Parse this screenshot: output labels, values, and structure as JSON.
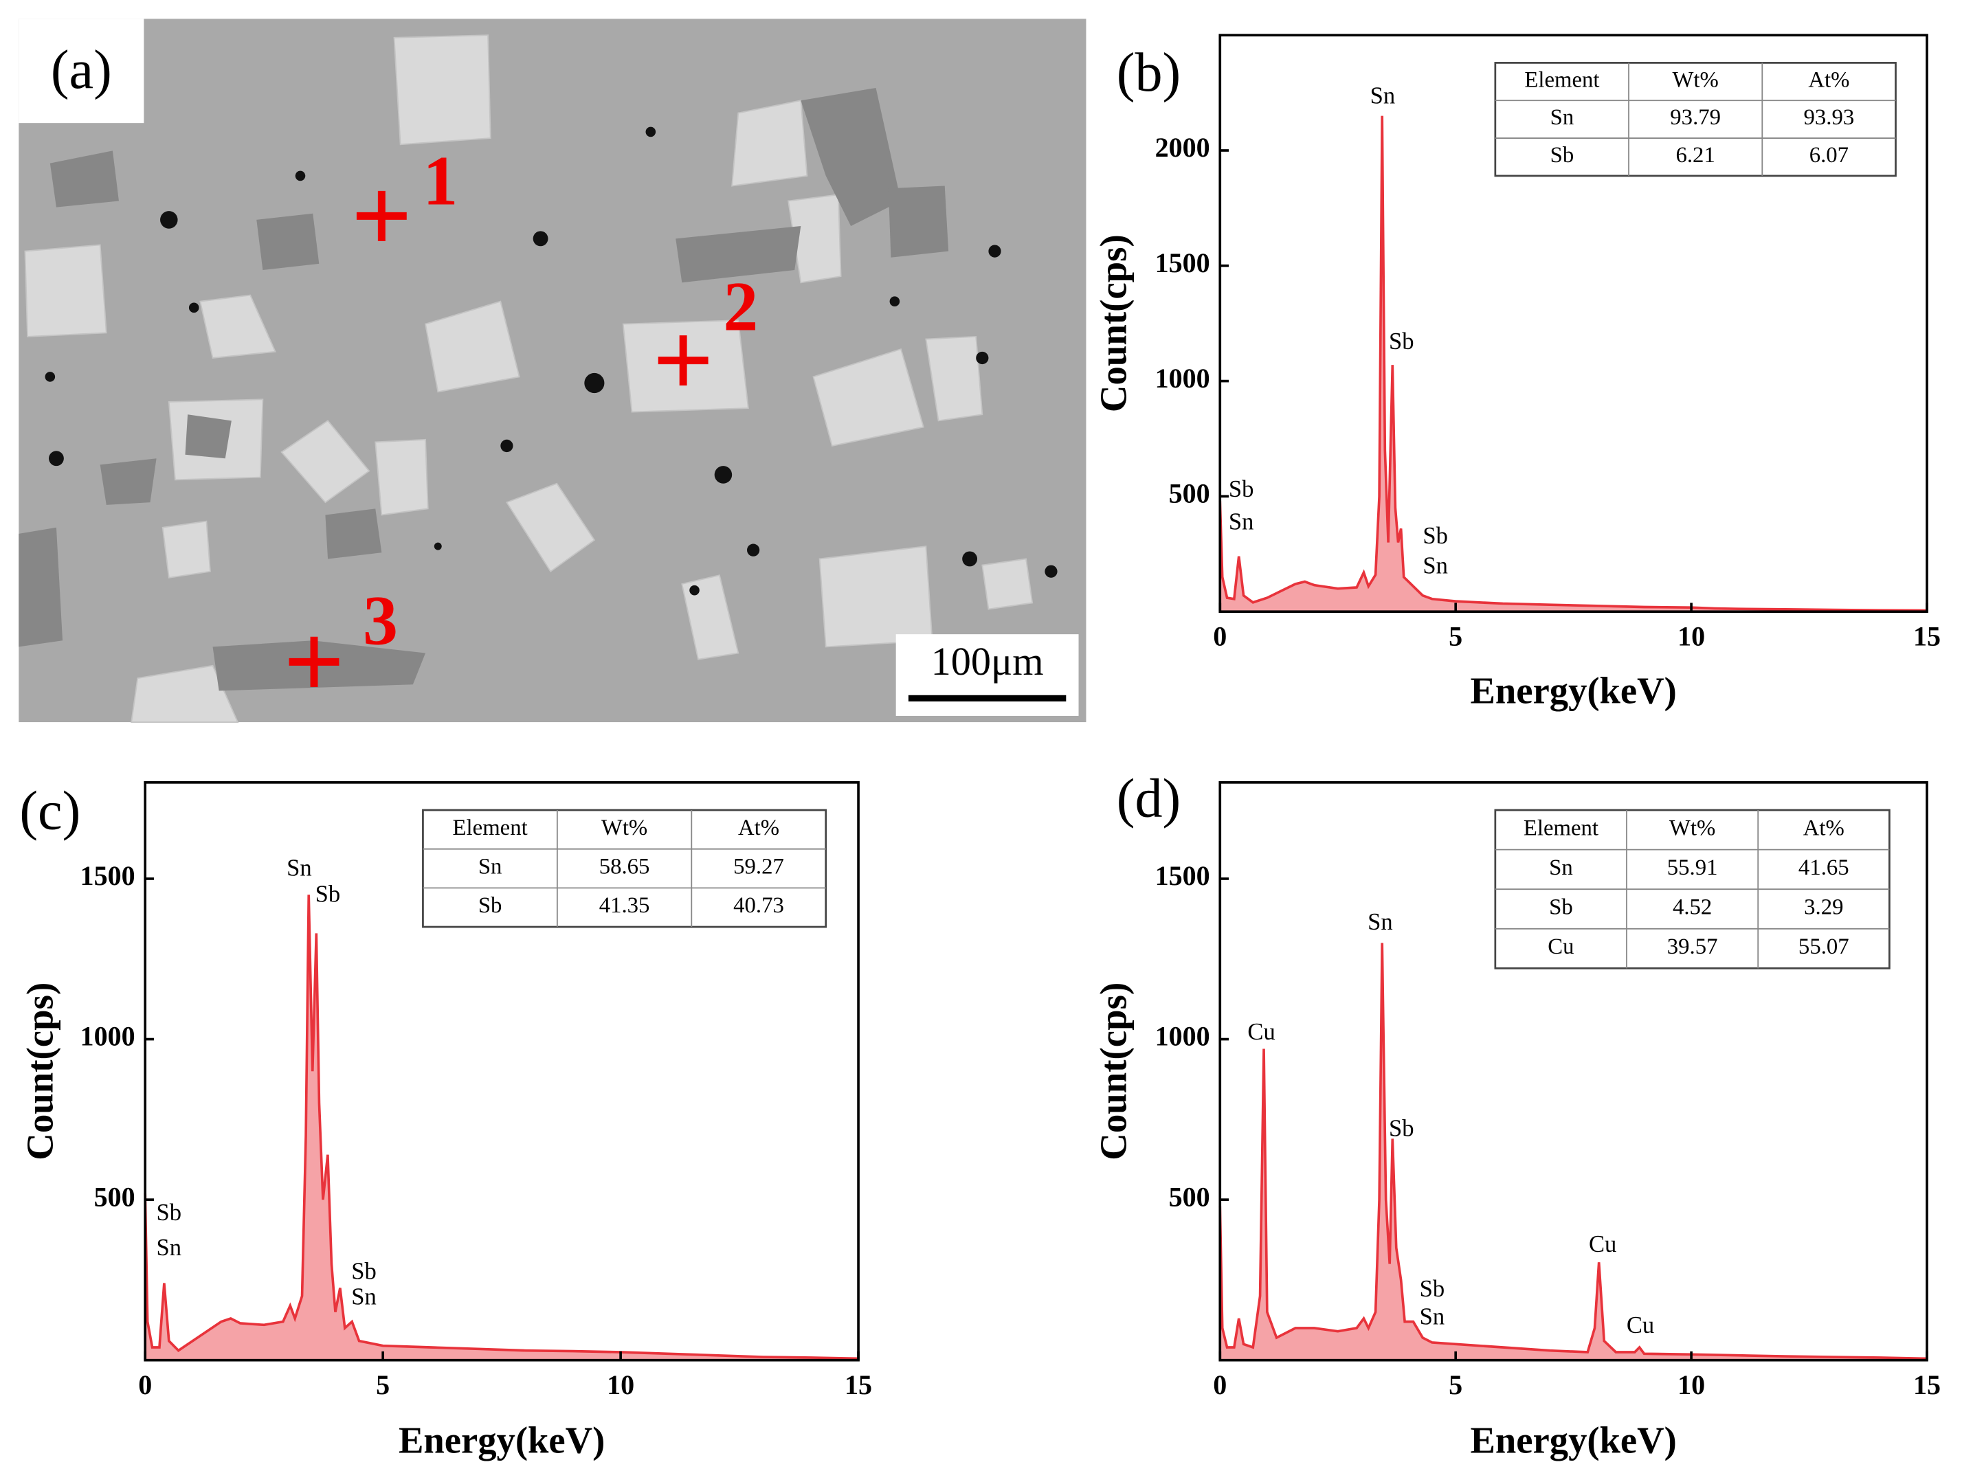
{
  "micrograph": {
    "label": "(a)",
    "points": [
      "1",
      "2",
      "3"
    ],
    "scale_bar": "100μm"
  },
  "chart_data": [
    {
      "type": "area",
      "panel": "(b)",
      "xlabel": "Energy(keV)",
      "ylabel": "Count(cps)",
      "color": "#e8333b",
      "xlim": [
        0,
        15
      ],
      "ylim": [
        0,
        2500
      ],
      "xticks": [
        0,
        5,
        10,
        15
      ],
      "yticks": [
        500,
        1000,
        1500,
        2000
      ],
      "x": [
        0,
        0.05,
        0.15,
        0.3,
        0.4,
        0.5,
        0.7,
        1.0,
        1.3,
        1.6,
        1.8,
        2.0,
        2.5,
        2.9,
        3.05,
        3.15,
        3.3,
        3.38,
        3.44,
        3.5,
        3.57,
        3.66,
        3.72,
        3.78,
        3.84,
        3.9,
        4.0,
        4.1,
        4.3,
        4.5,
        5,
        6,
        7,
        8,
        9,
        10,
        10.5,
        11,
        12,
        13,
        14,
        15
      ],
      "values": [
        480,
        150,
        60,
        55,
        240,
        70,
        40,
        60,
        90,
        120,
        130,
        115,
        100,
        105,
        170,
        110,
        160,
        500,
        2150,
        700,
        300,
        1070,
        450,
        300,
        360,
        150,
        130,
        110,
        70,
        55,
        45,
        35,
        30,
        25,
        20,
        18,
        14,
        12,
        10,
        8,
        6,
        5
      ],
      "annotations": [
        {
          "text": "Sn",
          "x": 3.45,
          "y": 2228
        },
        {
          "text": "Sb",
          "x": 3.85,
          "y": 1163
        },
        {
          "text": "Sb",
          "x": 0.45,
          "y": 522
        },
        {
          "text": "Sn",
          "x": 0.45,
          "y": 380
        },
        {
          "text": "Sb",
          "x": 4.57,
          "y": 320
        },
        {
          "text": "Sn",
          "x": 4.57,
          "y": 190
        }
      ],
      "table": {
        "columns": [
          "Element",
          "Wt%",
          "At%"
        ],
        "rows": [
          [
            "Sn",
            93.79,
            93.93
          ],
          [
            "Sb",
            6.21,
            6.07
          ]
        ]
      }
    },
    {
      "type": "area",
      "panel": "(c)",
      "xlabel": "Energy(keV)",
      "ylabel": "Count(cps)",
      "color": "#e8333b",
      "xlim": [
        0,
        15
      ],
      "ylim": [
        0,
        1800
      ],
      "xticks": [
        0,
        5,
        10,
        15
      ],
      "yticks": [
        500,
        1000,
        1500
      ],
      "x": [
        0,
        0.05,
        0.15,
        0.3,
        0.4,
        0.5,
        0.7,
        1.0,
        1.3,
        1.6,
        1.8,
        2.0,
        2.5,
        2.9,
        3.05,
        3.15,
        3.3,
        3.38,
        3.44,
        3.52,
        3.6,
        3.66,
        3.74,
        3.84,
        3.92,
        4.0,
        4.1,
        4.2,
        4.35,
        4.5,
        5,
        6,
        7,
        8,
        9,
        10,
        11,
        12,
        13,
        14,
        15
      ],
      "values": [
        520,
        120,
        40,
        40,
        240,
        60,
        30,
        60,
        90,
        120,
        130,
        115,
        110,
        120,
        170,
        130,
        200,
        700,
        1450,
        900,
        1330,
        800,
        500,
        640,
        300,
        150,
        225,
        100,
        120,
        60,
        45,
        40,
        35,
        30,
        28,
        25,
        20,
        15,
        10,
        8,
        5
      ],
      "annotations": [
        {
          "text": "Sn",
          "x": 3.24,
          "y": 1527
        },
        {
          "text": "Sb",
          "x": 3.84,
          "y": 1445
        },
        {
          "text": "Sb",
          "x": 0.5,
          "y": 453
        },
        {
          "text": "Sn",
          "x": 0.5,
          "y": 344
        },
        {
          "text": "Sb",
          "x": 4.6,
          "y": 270
        },
        {
          "text": "Sn",
          "x": 4.6,
          "y": 191
        }
      ],
      "table": {
        "columns": [
          "Element",
          "Wt%",
          "At%"
        ],
        "rows": [
          [
            "Sn",
            58.65,
            59.27
          ],
          [
            "Sb",
            41.35,
            40.73
          ]
        ]
      }
    },
    {
      "type": "area",
      "panel": "(d)",
      "xlabel": "Energy(keV)",
      "ylabel": "Count(cps)",
      "color": "#e8333b",
      "xlim": [
        0,
        15
      ],
      "ylim": [
        0,
        1800
      ],
      "xticks": [
        0,
        5,
        10,
        15
      ],
      "yticks": [
        500,
        1000,
        1500
      ],
      "x": [
        0,
        0.05,
        0.15,
        0.3,
        0.4,
        0.5,
        0.7,
        0.85,
        0.93,
        1.0,
        1.2,
        1.6,
        2.0,
        2.5,
        2.9,
        3.05,
        3.15,
        3.3,
        3.38,
        3.44,
        3.52,
        3.6,
        3.66,
        3.74,
        3.84,
        3.92,
        4.1,
        4.3,
        4.5,
        5,
        6,
        7,
        7.8,
        7.95,
        8.04,
        8.15,
        8.4,
        8.8,
        8.9,
        9.0,
        10,
        11,
        12,
        13,
        14,
        15
      ],
      "values": [
        480,
        100,
        40,
        40,
        130,
        50,
        40,
        200,
        970,
        150,
        70,
        100,
        100,
        90,
        100,
        130,
        100,
        150,
        500,
        1300,
        500,
        300,
        690,
        350,
        250,
        120,
        120,
        70,
        55,
        50,
        40,
        30,
        25,
        100,
        305,
        60,
        25,
        25,
        40,
        20,
        18,
        15,
        12,
        10,
        8,
        5
      ],
      "annotations": [
        {
          "text": "Cu",
          "x": 0.88,
          "y": 1016
        },
        {
          "text": "Sn",
          "x": 3.4,
          "y": 1359
        },
        {
          "text": "Sb",
          "x": 3.85,
          "y": 715
        },
        {
          "text": "Sb",
          "x": 4.5,
          "y": 215
        },
        {
          "text": "Sn",
          "x": 4.5,
          "y": 129
        },
        {
          "text": "Cu",
          "x": 8.12,
          "y": 355
        },
        {
          "text": "Cu",
          "x": 8.92,
          "y": 102
        }
      ],
      "table": {
        "columns": [
          "Element",
          "Wt%",
          "At%"
        ],
        "rows": [
          [
            "Sn",
            55.91,
            41.65
          ],
          [
            "Sb",
            4.52,
            3.29
          ],
          [
            "Cu",
            39.57,
            55.07
          ]
        ]
      }
    }
  ]
}
